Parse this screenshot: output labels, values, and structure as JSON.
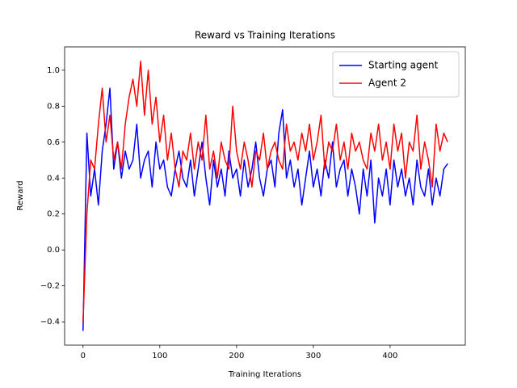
{
  "chart_data": {
    "type": "line",
    "title": "Reward vs Training Iterations",
    "x_label": "Training Iterations",
    "y_label": "Reward",
    "x": [
      0,
      5,
      10,
      15,
      20,
      25,
      30,
      35,
      40,
      45,
      50,
      55,
      60,
      65,
      70,
      75,
      80,
      85,
      90,
      95,
      100,
      105,
      110,
      115,
      120,
      125,
      130,
      135,
      140,
      145,
      150,
      155,
      160,
      165,
      170,
      175,
      180,
      185,
      190,
      195,
      200,
      205,
      210,
      215,
      220,
      225,
      230,
      235,
      240,
      245,
      250,
      255,
      260,
      265,
      270,
      275,
      280,
      285,
      290,
      295,
      300,
      305,
      310,
      315,
      320,
      325,
      330,
      335,
      340,
      345,
      350,
      355,
      360,
      365,
      370,
      375,
      380,
      385,
      390,
      395,
      400,
      405,
      410,
      415,
      420,
      425,
      430,
      435,
      440,
      445,
      450,
      455,
      460,
      465,
      470,
      475
    ],
    "series": [
      {
        "name": "Starting agent",
        "color": "#0000ff",
        "values": [
          -0.45,
          0.65,
          0.3,
          0.45,
          0.25,
          0.55,
          0.7,
          0.9,
          0.45,
          0.6,
          0.4,
          0.55,
          0.45,
          0.5,
          0.7,
          0.4,
          0.5,
          0.55,
          0.35,
          0.6,
          0.45,
          0.5,
          0.35,
          0.3,
          0.45,
          0.55,
          0.4,
          0.35,
          0.5,
          0.3,
          0.45,
          0.6,
          0.4,
          0.25,
          0.5,
          0.35,
          0.45,
          0.3,
          0.55,
          0.4,
          0.45,
          0.3,
          0.5,
          0.35,
          0.45,
          0.6,
          0.4,
          0.3,
          0.45,
          0.5,
          0.35,
          0.65,
          0.78,
          0.4,
          0.5,
          0.35,
          0.45,
          0.25,
          0.4,
          0.55,
          0.35,
          0.45,
          0.3,
          0.5,
          0.4,
          0.6,
          0.35,
          0.45,
          0.5,
          0.3,
          0.45,
          0.35,
          0.2,
          0.45,
          0.3,
          0.5,
          0.15,
          0.4,
          0.3,
          0.45,
          0.25,
          0.5,
          0.35,
          0.45,
          0.3,
          0.4,
          0.25,
          0.5,
          0.35,
          0.3,
          0.45,
          0.25,
          0.4,
          0.3,
          0.45,
          0.48
        ]
      },
      {
        "name": "Agent 2",
        "color": "#ff0000",
        "values": [
          -0.4,
          0.2,
          0.5,
          0.45,
          0.7,
          0.9,
          0.6,
          0.75,
          0.5,
          0.6,
          0.45,
          0.7,
          0.85,
          0.95,
          0.8,
          1.05,
          0.75,
          1.0,
          0.7,
          0.85,
          0.6,
          0.75,
          0.5,
          0.65,
          0.45,
          0.35,
          0.55,
          0.5,
          0.65,
          0.45,
          0.6,
          0.5,
          0.75,
          0.45,
          0.55,
          0.4,
          0.6,
          0.5,
          0.45,
          0.8,
          0.55,
          0.45,
          0.6,
          0.5,
          0.35,
          0.55,
          0.5,
          0.65,
          0.45,
          0.55,
          0.6,
          0.5,
          0.45,
          0.7,
          0.55,
          0.6,
          0.5,
          0.65,
          0.55,
          0.7,
          0.5,
          0.6,
          0.75,
          0.45,
          0.6,
          0.55,
          0.7,
          0.5,
          0.6,
          0.45,
          0.65,
          0.55,
          0.6,
          0.5,
          0.45,
          0.65,
          0.55,
          0.7,
          0.5,
          0.6,
          0.45,
          0.7,
          0.55,
          0.65,
          0.4,
          0.6,
          0.55,
          0.75,
          0.45,
          0.6,
          0.5,
          0.35,
          0.7,
          0.55,
          0.65,
          0.6
        ]
      }
    ],
    "xlim": [
      -24,
      498
    ],
    "ylim": [
      -0.53,
      1.13
    ],
    "xticks": [
      0,
      100,
      200,
      300,
      400
    ],
    "yticks": [
      {
        "value": -0.4,
        "label": "−0.4"
      },
      {
        "value": -0.2,
        "label": "−0.2"
      },
      {
        "value": 0,
        "label": "0.0"
      },
      {
        "value": 0.2,
        "label": "0.2"
      },
      {
        "value": 0.4,
        "label": "0.4"
      },
      {
        "value": 0.6,
        "label": "0.6"
      },
      {
        "value": 0.8,
        "label": "0.8"
      },
      {
        "value": 1,
        "label": "1.0"
      }
    ],
    "legend": "upper right"
  }
}
